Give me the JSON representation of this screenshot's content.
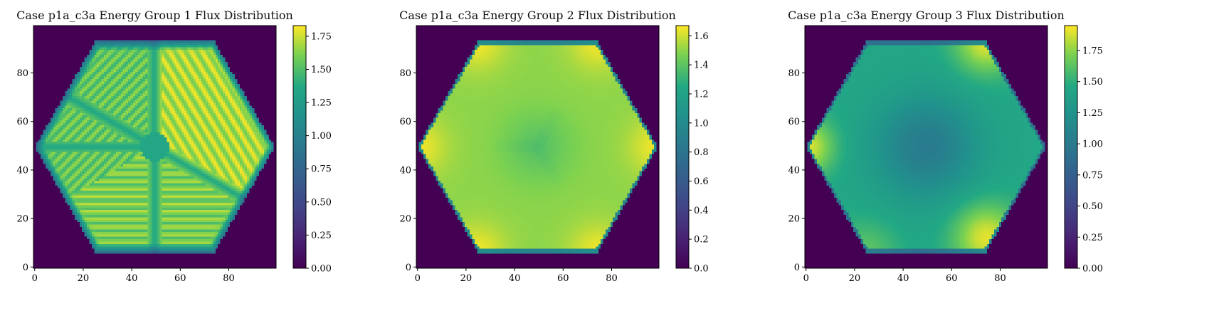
{
  "chart_data": [
    {
      "type": "heatmap",
      "title": "Case p1a_c3a Energy Group 1 Flux Distribution",
      "xlim": [
        0,
        99
      ],
      "ylim": [
        0,
        99
      ],
      "xticks": [
        0,
        20,
        40,
        60,
        80
      ],
      "yticks": [
        0,
        20,
        40,
        60,
        80
      ],
      "colorbar": {
        "min": 0.0,
        "max": 1.83,
        "ticks": [
          "0.00",
          "0.25",
          "0.50",
          "0.75",
          "1.00",
          "1.25",
          "1.50",
          "1.75"
        ]
      },
      "colormap": "viridis",
      "pattern": {
        "outside_value": 0.0,
        "hexagon": {
          "center": [
            49.5,
            49.5
          ],
          "vertices_x_extremes": [
            0,
            99
          ],
          "flat_top_y": 93,
          "flat_bottom_y": 6
        },
        "regions": [
          {
            "name": "top sector",
            "value": 1.55
          },
          {
            "name": "right sector",
            "value": 1.7
          },
          {
            "name": "bottom sector",
            "value": 1.6
          }
        ],
        "seam_value": 1.35,
        "stripe_amplitude": 0.12
      }
    },
    {
      "type": "heatmap",
      "title": "Case p1a_c3a Energy Group 2 Flux Distribution",
      "xlim": [
        0,
        99
      ],
      "ylim": [
        0,
        99
      ],
      "xticks": [
        0,
        20,
        40,
        60,
        80
      ],
      "yticks": [
        0,
        20,
        40,
        60,
        80
      ],
      "colorbar": {
        "min": 0.0,
        "max": 1.67,
        "ticks": [
          "0.0",
          "0.2",
          "0.4",
          "0.6",
          "0.8",
          "1.0",
          "1.2",
          "1.4",
          "1.6"
        ]
      },
      "colormap": "viridis",
      "pattern": {
        "outside_value": 0.0,
        "interior_value": 1.5,
        "corner_value": 1.65,
        "center_value": 1.38,
        "y_arm_value": 1.36
      }
    },
    {
      "type": "heatmap",
      "title": "Case p1a_c3a Energy Group 3 Flux Distribution",
      "xlim": [
        0,
        99
      ],
      "ylim": [
        0,
        99
      ],
      "xticks": [
        0,
        20,
        40,
        60,
        80
      ],
      "yticks": [
        0,
        20,
        40,
        60,
        80
      ],
      "colorbar": {
        "min": 0.0,
        "max": 1.95,
        "ticks": [
          "0.00",
          "0.25",
          "0.50",
          "0.75",
          "1.00",
          "1.25",
          "1.50",
          "1.75"
        ]
      },
      "colormap": "viridis",
      "pattern": {
        "outside_value": 0.0,
        "interior_value": 1.45,
        "corner_value": 1.9,
        "center_value": 0.95,
        "y_arm_value": 0.98
      }
    }
  ]
}
